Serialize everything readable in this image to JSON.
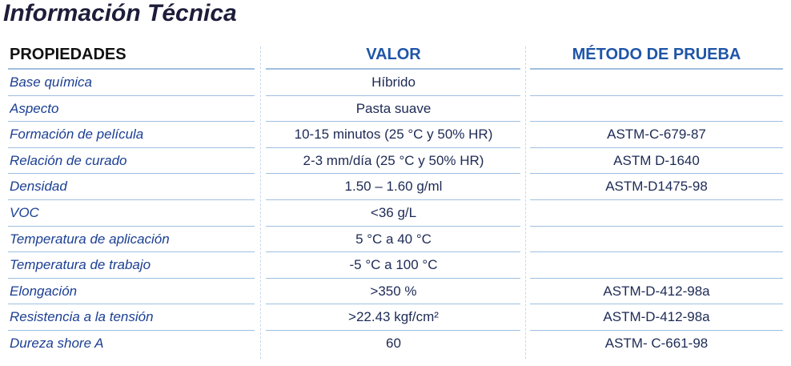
{
  "title": "Información Técnica",
  "table": {
    "headers": [
      "PROPIEDADES",
      "VALOR",
      "MÉTODO DE PRUEBA"
    ],
    "rows": [
      [
        "Base química",
        "Híbrido"
      ],
      [
        "Aspecto",
        "Pasta suave"
      ],
      [
        "Formación de película",
        "10-15 minutos (25 °C y 50% HR)",
        "ASTM-C-679-87"
      ],
      [
        "Relación de curado",
        "2-3 mm/día (25 °C y 50% HR)",
        "ASTM D-1640"
      ],
      [
        "Densidad",
        "1.50 – 1.60 g/ml",
        "ASTM-D1475-98"
      ],
      [
        "VOC",
        "<36 g/L"
      ],
      [
        "Temperatura de aplicación",
        "5 °C a 40 °C"
      ],
      [
        "Temperatura de trabajo",
        "-5 °C a 100 °C"
      ],
      [
        "Elongación",
        ">350 %",
        "ASTM-D-412-98a"
      ],
      [
        "Resistencia a la tensión",
        ">22.43 kgf/cm²",
        "ASTM-D-412-98a"
      ],
      [
        "Dureza shore A",
        "60",
        "ASTM- C-661-98"
      ]
    ]
  }
}
